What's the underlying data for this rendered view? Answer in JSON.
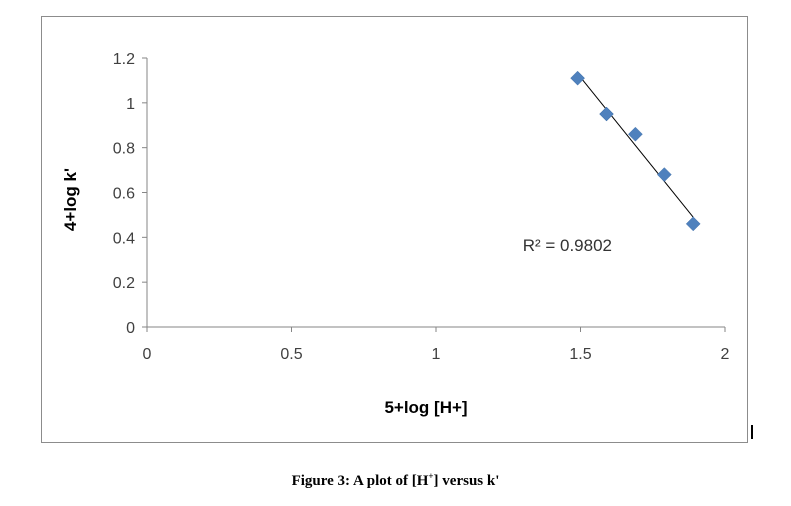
{
  "chart_data": {
    "type": "scatter",
    "xlabel": "5+log [H+]",
    "ylabel": "4+log k'",
    "xlim": [
      0,
      2
    ],
    "ylim": [
      0,
      1.2
    ],
    "x_ticks": [
      "0",
      "0.5",
      "1",
      "1.5",
      "2"
    ],
    "y_ticks": [
      "0",
      "0.2",
      "0.4",
      "0.6",
      "0.8",
      "1",
      "1.2"
    ],
    "points": [
      {
        "x": 1.49,
        "y": 1.11
      },
      {
        "x": 1.59,
        "y": 0.95
      },
      {
        "x": 1.69,
        "y": 0.86
      },
      {
        "x": 1.79,
        "y": 0.68
      },
      {
        "x": 1.89,
        "y": 0.46
      }
    ],
    "trendline": {
      "type": "linear",
      "x": [
        1.49,
        1.89
      ],
      "y": [
        1.13,
        0.49
      ]
    },
    "r_squared_label": "R² = 0.9802",
    "marker_color": "#4f81bd",
    "trendline_color": "#000000",
    "grid": false,
    "legend": "none"
  },
  "caption": {
    "prefix": "Figure 3: A plot of [H",
    "superscript": "+",
    "suffix": "] versus k'"
  }
}
